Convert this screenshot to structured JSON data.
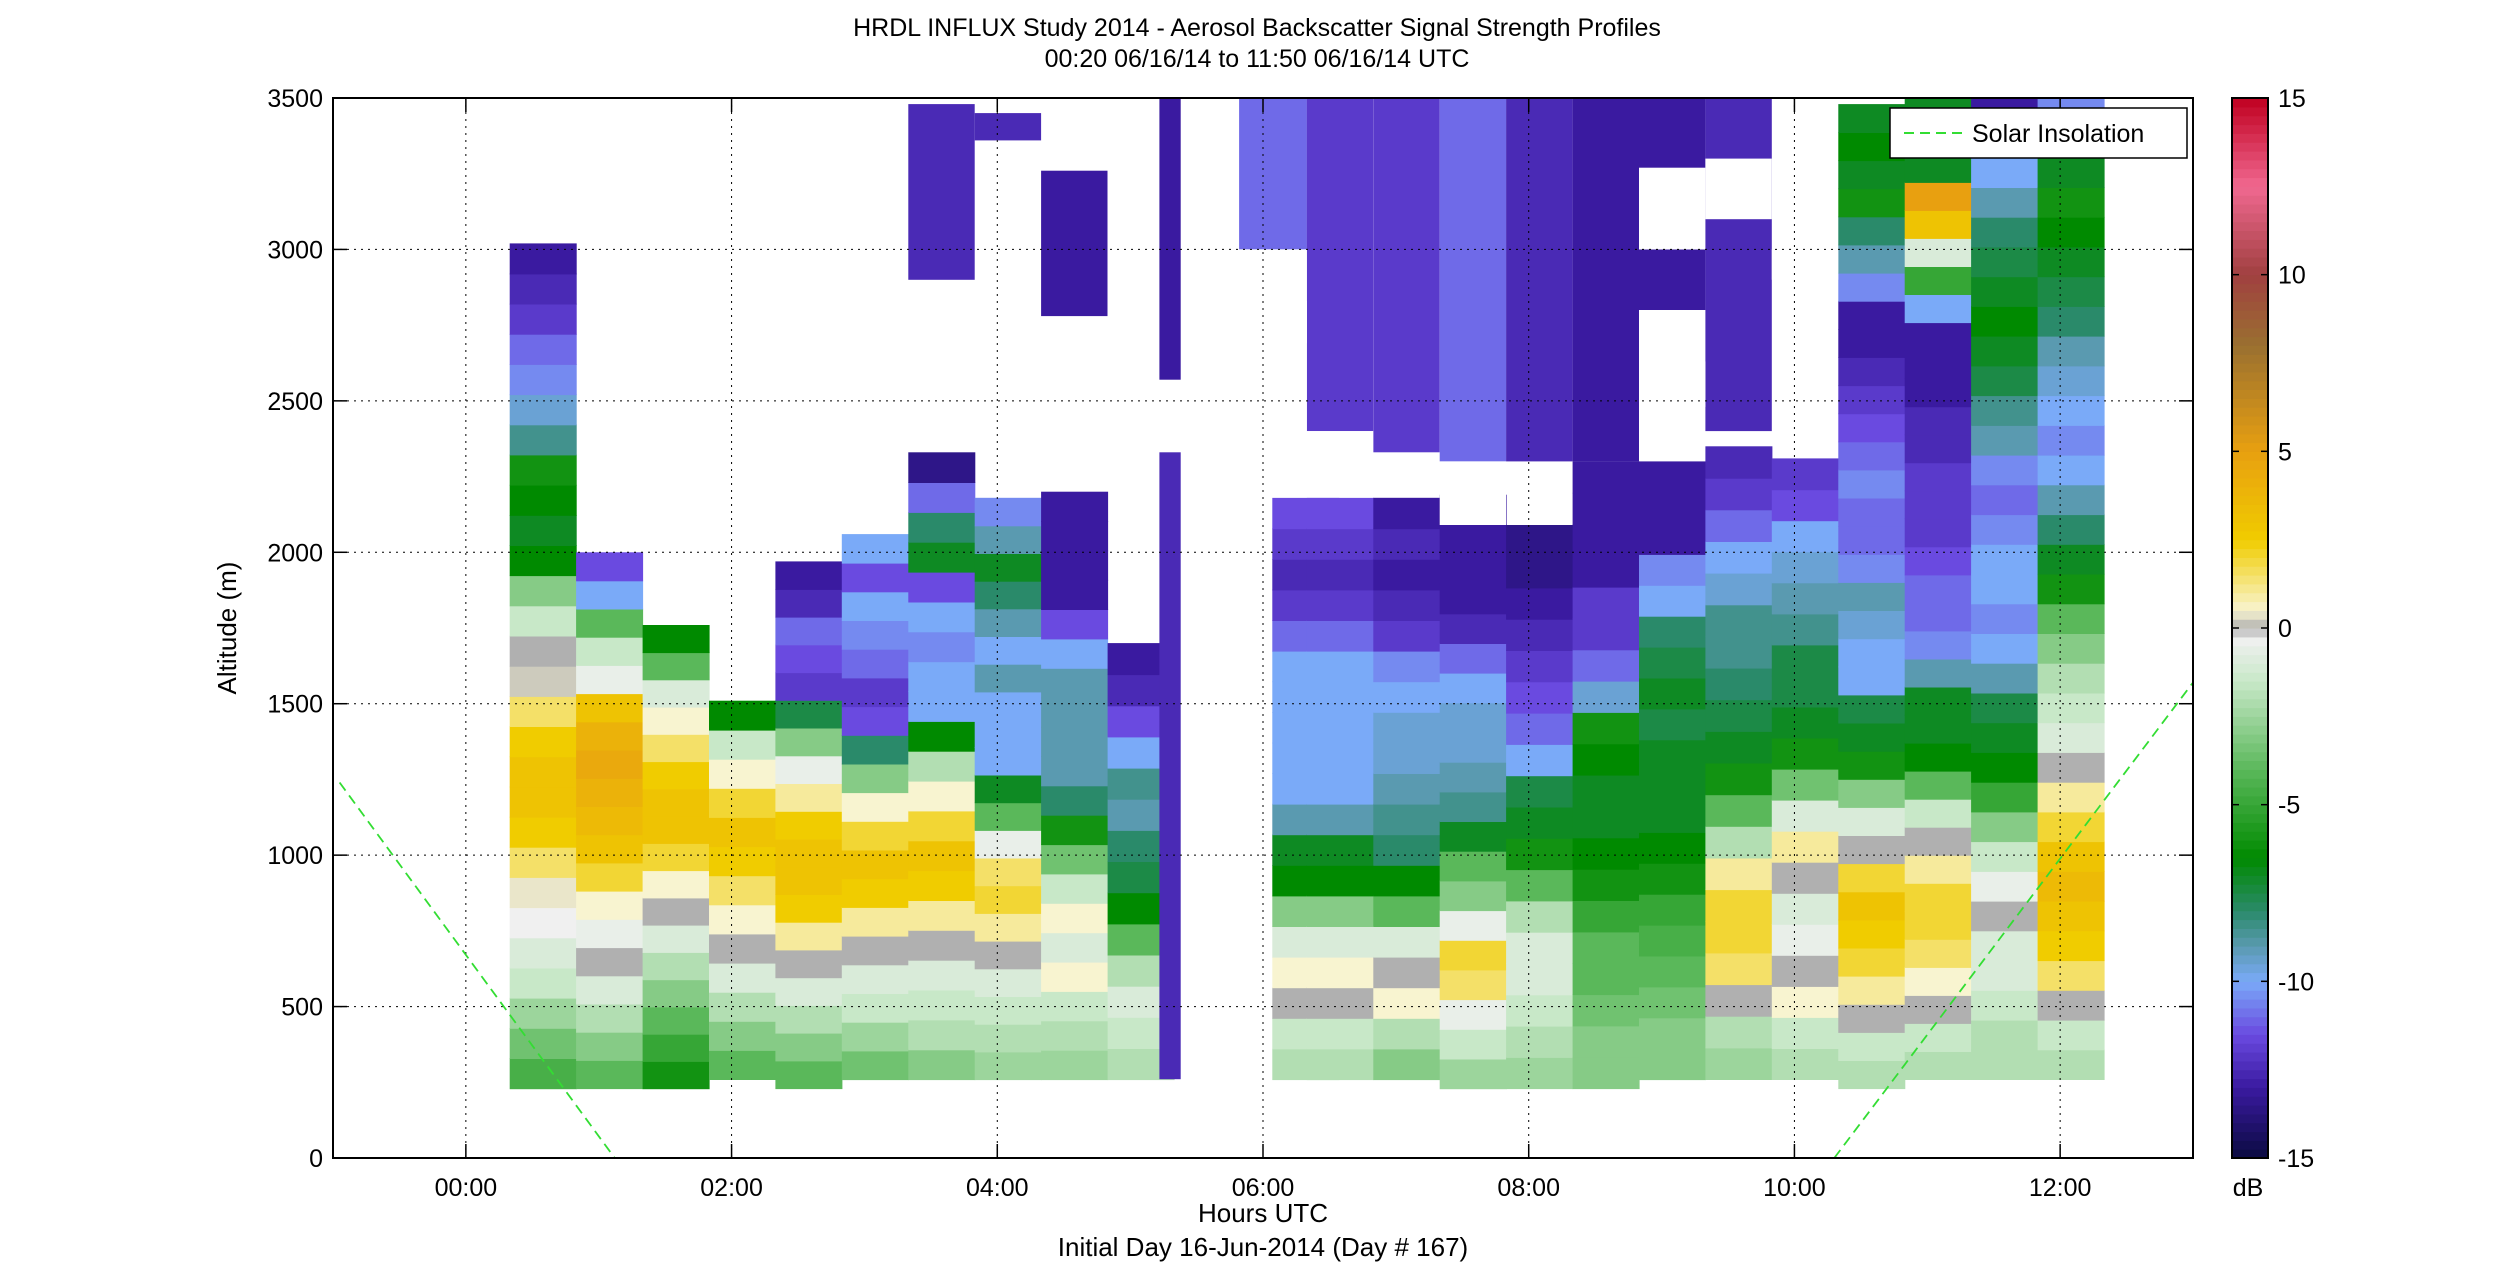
{
  "chart_data": {
    "type": "heatmap",
    "title": "HRDL INFLUX Study 2014 - Aerosol Backscatter Signal Strength Profiles",
    "subtitle": "00:20 06/16/14 to 11:50 06/16/14  UTC",
    "xlabel": "Hours UTC",
    "xlabel2": "Initial Day 16-Jun-2014 (Day # 167)",
    "ylabel": "Altitude (m)",
    "xlim": [
      -1.0,
      13.0
    ],
    "ylim": [
      0,
      3500
    ],
    "xticks": [
      0,
      2,
      4,
      6,
      8,
      10,
      12
    ],
    "xticklabels": [
      "00:00",
      "02:00",
      "04:00",
      "06:00",
      "08:00",
      "10:00",
      "12:00"
    ],
    "yticks": [
      0,
      500,
      1000,
      1500,
      2000,
      2500,
      3000,
      3500
    ],
    "yticklabels": [
      "0",
      "500",
      "1000",
      "1500",
      "2000",
      "2500",
      "3000",
      "3500"
    ],
    "grid": true,
    "legend": {
      "entries": [
        "Solar Insolation"
      ],
      "placement": "top-right",
      "line_color": "#33dd33",
      "line_style": "dashed"
    },
    "colorbar": {
      "label": "dB",
      "range": [
        -15,
        15
      ],
      "ticks": [
        -15,
        -10,
        -5,
        0,
        5,
        10,
        15
      ],
      "ticklabels": [
        "-15",
        "-10",
        "-5",
        "0",
        "5",
        "10",
        "15"
      ],
      "colors": [
        {
          "db": -15,
          "color": "#0a0a40"
        },
        {
          "db": -13,
          "color": "#3a1aa0"
        },
        {
          "db": -11.5,
          "color": "#6a4ae0"
        },
        {
          "db": -10,
          "color": "#7aaaf8"
        },
        {
          "db": -9,
          "color": "#5a9ab0"
        },
        {
          "db": -8,
          "color": "#2a8a6a"
        },
        {
          "db": -6.5,
          "color": "#008a00"
        },
        {
          "db": -4,
          "color": "#5ab85a"
        },
        {
          "db": -1.5,
          "color": "#c8e8c8"
        },
        {
          "db": -0.3,
          "color": "#f0f0f0"
        },
        {
          "db": 0,
          "color": "#b0b0b0"
        },
        {
          "db": 0.5,
          "color": "#f8f4d0"
        },
        {
          "db": 2.5,
          "color": "#f0cc00"
        },
        {
          "db": 5,
          "color": "#e8a010"
        },
        {
          "db": 8,
          "color": "#9a7030"
        },
        {
          "db": 10,
          "color": "#a04040"
        },
        {
          "db": 12.5,
          "color": "#f06890"
        },
        {
          "db": 15,
          "color": "#c00020"
        }
      ]
    },
    "solar_insolation": [
      {
        "x": [
          -0.95,
          1.12
        ],
        "y": [
          1240,
          0
        ]
      },
      {
        "x": [
          10.3,
          13.0
        ],
        "y": [
          0,
          1570
        ]
      }
    ],
    "bin_width_hours": 0.5,
    "profiles": [
      {
        "t": 0.33,
        "top": 3020,
        "bottom": 230,
        "values": [
          -4.5,
          -3.5,
          -2.5,
          -1.5,
          -1,
          -0.3,
          0.4,
          1.5,
          2.5,
          3,
          3,
          2.5,
          1.5,
          0.2,
          0,
          -1.5,
          -3,
          -6.5,
          -7,
          -6.5,
          -6,
          -8.5,
          -9.5,
          -10.5,
          -11,
          -12,
          -12.5,
          -13
        ]
      },
      {
        "t": 0.83,
        "top": 2000,
        "bottom": 230,
        "values": [
          -4,
          -3,
          -2,
          -1,
          0,
          -0.5,
          0.5,
          2,
          3,
          3.5,
          4,
          4.5,
          4,
          3,
          -0.5,
          -1.5,
          -4,
          -10,
          -11.5
        ]
      },
      {
        "t": 1.33,
        "top": 1760,
        "bottom": 230,
        "values": [
          -6,
          -5,
          -4,
          -3,
          -2,
          -1,
          0,
          0.5,
          2,
          3,
          3,
          2.5,
          1.5,
          0.5,
          -1,
          -4,
          -6.5
        ]
      },
      {
        "t": 1.83,
        "top": 1510,
        "bottom": 260,
        "values": [
          -4,
          -3,
          -2,
          -1,
          0,
          0.5,
          1.5,
          2.5,
          3,
          2,
          0.5,
          -1.5,
          -6.5
        ]
      },
      {
        "t": 2.33,
        "top": 1970,
        "bottom": 230,
        "values": [
          -4,
          -3,
          -2,
          -1,
          0,
          1,
          2.5,
          3,
          3,
          2.5,
          1,
          -0.5,
          -3,
          -7.5,
          -12,
          -11.5,
          -11,
          -12.5,
          -13
        ]
      },
      {
        "t": 2.83,
        "top": 2060,
        "bottom": 260,
        "values": [
          -3.5,
          -2.5,
          -1.5,
          -1,
          0,
          1,
          2.5,
          3,
          2,
          0.5,
          -3,
          -8,
          -11.5,
          -12,
          -11,
          -10.5,
          -10,
          -11.5,
          -10
        ]
      },
      {
        "t": 3.33,
        "top": 2330,
        "bottom": 260,
        "values": [
          -3,
          -2,
          -1.5,
          -1,
          0,
          1,
          2.5,
          3,
          2,
          0.5,
          -2,
          -6.5,
          -10,
          -10,
          -10.5,
          -10,
          -11.5,
          -7,
          -8,
          -11,
          -13.5
        ]
      },
      {
        "t": 3.83,
        "top": 2180,
        "bottom": 260,
        "values": [
          -2.5,
          -2,
          -1.5,
          -1,
          0,
          1,
          2,
          1.5,
          -0.5,
          -4,
          -7,
          -10,
          -10,
          -10,
          -9,
          -10,
          -9,
          -8,
          -7,
          -9,
          -10.5
        ]
      },
      {
        "t": 4.33,
        "top": 2200,
        "bottom": 260,
        "values": [
          -2.5,
          -2,
          -1.5,
          0.5,
          -1,
          0.5,
          -1.5,
          -3.5,
          -6,
          -8,
          -9,
          -9,
          -9,
          -9,
          -10,
          -11.5,
          -13,
          -13,
          -13,
          -13
        ]
      },
      {
        "t": 4.83,
        "top": 1700,
        "bottom": 260,
        "values": [
          -2,
          -1.5,
          -1,
          -2,
          -4,
          -6.5,
          -7.5,
          -8,
          -9,
          -8.5,
          -10,
          -11.5,
          -12.5,
          -13
        ]
      },
      {
        "t": 6.07,
        "top": 2180,
        "bottom": 260,
        "values": [
          -2,
          -1.5,
          0,
          0.5,
          -1,
          -3,
          -6.5,
          -7,
          -9,
          -10,
          -10,
          -10,
          -10,
          -10,
          -11,
          -12,
          -12.5,
          -12,
          -11.5
        ]
      },
      {
        "t": 6.33,
        "top": 2180,
        "bottom": 260,
        "values": [
          -2,
          -1.5,
          0,
          0.5,
          -1,
          -3,
          -6.5,
          -7,
          -9,
          -10,
          -10,
          -10,
          -10,
          -10,
          -11,
          -12,
          -12.5,
          -12,
          -11.5
        ]
      },
      {
        "t": 6.83,
        "top": 2180,
        "bottom": 260,
        "values": [
          -3,
          -2,
          0.5,
          0,
          -1,
          -4,
          -6.5,
          -8,
          -8.5,
          -9,
          -9.5,
          -9.5,
          -10,
          -10.5,
          -12,
          -12.5,
          -13,
          -12.5,
          -13
        ]
      },
      {
        "t": 7.33,
        "top": 2190,
        "bottom": 230,
        "values": [
          -2.5,
          -1.5,
          -0.5,
          1.5,
          2,
          -0.5,
          -3,
          -4,
          -7,
          -8.5,
          -9,
          -9.5,
          -9.5,
          -10,
          -11,
          -12.5,
          -13,
          -13,
          -13,
          -13
        ]
      },
      {
        "t": 7.83,
        "top": 2090,
        "bottom": 230,
        "values": [
          -2.5,
          -2,
          -1.5,
          -1,
          -1,
          -2,
          -4,
          -6,
          -7,
          -7.5,
          -10,
          -11,
          -11.5,
          -12,
          -12.5,
          -13,
          -13.5,
          -13.5
        ]
      },
      {
        "t": 8.33,
        "top": 2300,
        "bottom": 230,
        "values": [
          -3,
          -3,
          -3.5,
          -4,
          -4,
          -5,
          -6,
          -6.5,
          -7,
          -7,
          -6.5,
          -6,
          -9.5,
          -11,
          -12,
          -12,
          -13,
          -13,
          -13,
          -13
        ]
      },
      {
        "t": 8.83,
        "top": 2300,
        "bottom": 260,
        "values": [
          -3,
          -3,
          -3.5,
          -4,
          -4.5,
          -5,
          -6,
          -6.5,
          -7,
          -7,
          -7,
          -7.5,
          -7,
          -7.5,
          -8,
          -10,
          -10.5,
          -13,
          -13,
          -13
        ]
      },
      {
        "t": 9.33,
        "top": 2350,
        "bottom": 260,
        "values": [
          -2.5,
          -2,
          0,
          1.5,
          2,
          2,
          1,
          -2,
          -4,
          -6,
          -7,
          -7.5,
          -8,
          -8.5,
          -8.5,
          -9.5,
          -10,
          -11,
          -12,
          -12.5
        ]
      },
      {
        "t": 9.83,
        "top": 2310,
        "bottom": 260,
        "values": [
          -2,
          -1.5,
          0.5,
          0,
          -0.5,
          -1,
          0,
          1,
          -1,
          -3.5,
          -6,
          -7,
          -7.5,
          -7.5,
          -8.5,
          -9,
          -9.5,
          -10,
          -11.5,
          -12
        ]
      },
      {
        "t": 10.33,
        "top": 3480,
        "bottom": 230,
        "values": [
          -2,
          -1.5,
          0,
          1,
          2,
          2.5,
          3,
          2,
          0,
          -1,
          -3,
          -6,
          -7,
          -7.5,
          -10,
          -10,
          -9.5,
          -9,
          -10.5,
          -11,
          -11,
          -10.5,
          -11,
          -11.5,
          -12,
          -12.5,
          -13,
          -13,
          -10.5,
          -9,
          -8,
          -6,
          -7,
          -6.5,
          -7
        ]
      },
      {
        "t": 10.83,
        "top": 3500,
        "bottom": 260,
        "values": [
          -2,
          -1.5,
          0,
          0.5,
          1.5,
          2,
          2,
          1,
          0,
          -1.5,
          -4,
          -6.5,
          -7,
          -7,
          -9,
          -10.5,
          -11,
          -11,
          -11.5,
          -12,
          -12,
          -12,
          -12.5,
          -12.5,
          -13,
          -13,
          -13,
          -10,
          -5,
          -1,
          3,
          5,
          -7,
          -6.5,
          -7
        ]
      },
      {
        "t": 11.33,
        "top": 3500,
        "bottom": 260,
        "values": [
          -2,
          -2,
          -1.5,
          -1,
          -1,
          0,
          -0.5,
          -1.5,
          -3,
          -5,
          -6.5,
          -7,
          -7.5,
          -9,
          -10,
          -10.5,
          -10,
          -10,
          -10.5,
          -11,
          -10.5,
          -9,
          -8.5,
          -7.5,
          -7,
          -6.5,
          -7,
          -7.5,
          -8,
          -9,
          -10,
          -12,
          -13
        ]
      },
      {
        "t": 11.83,
        "top": 3500,
        "bottom": 260,
        "values": [
          -2,
          -1.5,
          0,
          1.5,
          2.5,
          3,
          3.5,
          3,
          2,
          1,
          0,
          -1,
          -1.5,
          -2,
          -3,
          -4,
          -6,
          -7,
          -8,
          -9,
          -10,
          -10.5,
          -10,
          -9.5,
          -9,
          -8,
          -7.5,
          -7,
          -6.5,
          -6,
          -7,
          -8,
          -10.5
        ]
      }
    ],
    "upper_patches": [
      {
        "x0": 3.33,
        "x1": 3.83,
        "y0": 2900,
        "y1": 3480,
        "db": -12.5
      },
      {
        "x0": 3.83,
        "x1": 4.33,
        "y0": 3360,
        "y1": 3450,
        "db": -12.5
      },
      {
        "x0": 4.33,
        "x1": 4.83,
        "y0": 2780,
        "y1": 3260,
        "db": -13
      },
      {
        "x0": 5.22,
        "x1": 5.38,
        "y0": 260,
        "y1": 2330,
        "db": -12.5
      },
      {
        "x0": 5.22,
        "x1": 5.38,
        "y0": 2570,
        "y1": 3500,
        "db": -13
      },
      {
        "x0": 5.82,
        "x1": 6.33,
        "y0": 3000,
        "y1": 3500,
        "db": -11
      },
      {
        "x0": 6.33,
        "x1": 6.83,
        "y0": 2400,
        "y1": 3500,
        "db": -12
      },
      {
        "x0": 6.83,
        "x1": 7.33,
        "y0": 2330,
        "y1": 3500,
        "db": -12
      },
      {
        "x0": 7.33,
        "x1": 7.83,
        "y0": 2300,
        "y1": 3500,
        "db": -11
      },
      {
        "x0": 7.83,
        "x1": 8.33,
        "y0": 2300,
        "y1": 3500,
        "db": -12.5
      },
      {
        "x0": 8.33,
        "x1": 8.83,
        "y0": 2300,
        "y1": 3500,
        "db": -13
      },
      {
        "x0": 8.83,
        "x1": 9.33,
        "y0": 2800,
        "y1": 3500,
        "db": -13
      },
      {
        "x0": 9.33,
        "x1": 9.83,
        "y0": 2400,
        "y1": 3500,
        "db": -12.5
      }
    ],
    "cutouts": [
      {
        "x0": 5.82,
        "x1": 6.33,
        "y0": 2180,
        "y1": 3000
      },
      {
        "x0": 6.33,
        "x1": 6.83,
        "y0": 2180,
        "y1": 2400
      },
      {
        "x0": 7.33,
        "x1": 7.83,
        "y0": 2090,
        "y1": 2300
      },
      {
        "x0": 8.83,
        "x1": 9.33,
        "y0": 2480,
        "y1": 2630
      },
      {
        "x0": 8.83,
        "x1": 9.33,
        "y0": 3000,
        "y1": 3270
      },
      {
        "x0": 9.33,
        "x1": 9.83,
        "y0": 3100,
        "y1": 3300
      },
      {
        "x0": 9.83,
        "x1": 10.33,
        "y0": 2900,
        "y1": 3000
      },
      {
        "x0": 5.82,
        "x1": 6.33,
        "y0": 2690,
        "y1": 2830
      }
    ]
  }
}
